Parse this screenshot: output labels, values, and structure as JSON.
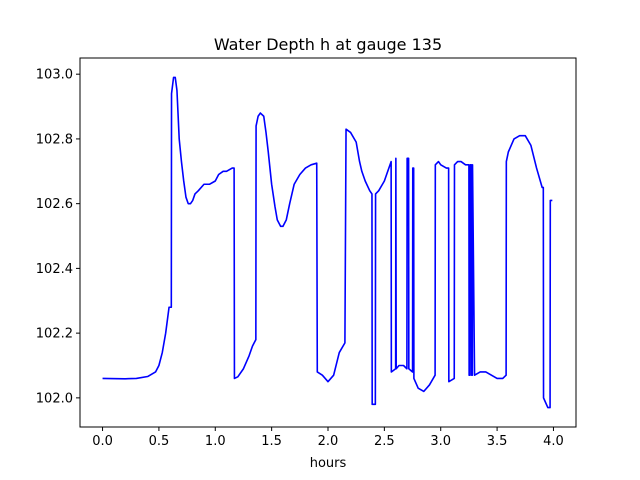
{
  "chart_data": {
    "type": "line",
    "title": "Water Depth h at gauge 135",
    "xlabel": "hours",
    "ylabel": "",
    "xlim": [
      -0.2,
      4.2
    ],
    "ylim": [
      101.91,
      103.05
    ],
    "xticks": [
      0.0,
      0.5,
      1.0,
      1.5,
      2.0,
      2.5,
      3.0,
      3.5,
      4.0
    ],
    "xtick_labels": [
      "0.0",
      "0.5",
      "1.0",
      "1.5",
      "2.0",
      "2.5",
      "3.0",
      "3.5",
      "4.0"
    ],
    "yticks": [
      102.0,
      102.2,
      102.4,
      102.6,
      102.8,
      103.0
    ],
    "ytick_labels": [
      "102.0",
      "102.2",
      "102.4",
      "102.6",
      "102.8",
      "103.0"
    ],
    "grid": false,
    "line_color": "#0000ff",
    "series": [
      {
        "x": [
          0.0,
          0.2,
          0.3,
          0.4,
          0.47,
          0.5,
          0.53,
          0.56,
          0.59,
          0.61,
          0.612,
          0.63,
          0.645,
          0.66,
          0.68,
          0.7,
          0.72,
          0.74,
          0.76,
          0.78,
          0.8,
          0.82,
          0.85,
          0.9,
          0.95,
          1.0,
          1.03,
          1.07,
          1.1,
          1.15,
          1.167,
          1.17,
          1.2,
          1.25,
          1.3,
          1.33,
          1.36,
          1.362,
          1.38,
          1.4,
          1.43,
          1.45,
          1.47,
          1.5,
          1.53,
          1.55,
          1.58,
          1.6,
          1.63,
          1.66,
          1.7,
          1.75,
          1.8,
          1.85,
          1.9,
          1.905,
          1.95,
          2.0,
          2.05,
          2.1,
          2.15,
          2.16,
          2.2,
          2.25,
          2.28,
          2.3,
          2.33,
          2.37,
          2.39,
          2.392,
          2.42,
          2.422,
          2.45,
          2.5,
          2.53,
          2.56,
          2.562,
          2.6,
          2.602,
          2.605,
          2.63,
          2.67,
          2.7,
          2.702,
          2.715,
          2.717,
          2.75,
          2.752,
          2.76,
          2.762,
          2.8,
          2.85,
          2.9,
          2.95,
          2.952,
          2.98,
          3.0,
          3.05,
          3.07,
          3.072,
          3.12,
          3.122,
          3.15,
          3.18,
          3.22,
          3.25,
          3.252,
          3.26,
          3.262,
          3.272,
          3.275,
          3.28,
          3.282,
          3.3,
          3.35,
          3.4,
          3.45,
          3.5,
          3.55,
          3.58,
          3.582,
          3.6,
          3.65,
          3.7,
          3.75,
          3.8,
          3.85,
          3.9,
          3.91,
          3.912,
          3.95,
          3.97,
          3.972,
          3.99
        ],
        "y": [
          102.06,
          102.059,
          102.06,
          102.066,
          102.08,
          102.1,
          102.14,
          102.2,
          102.28,
          102.28,
          102.94,
          102.99,
          102.99,
          102.95,
          102.8,
          102.73,
          102.67,
          102.62,
          102.6,
          102.6,
          102.61,
          102.63,
          102.64,
          102.66,
          102.66,
          102.67,
          102.69,
          102.7,
          102.7,
          102.71,
          102.71,
          102.06,
          102.065,
          102.09,
          102.13,
          102.16,
          102.18,
          102.84,
          102.87,
          102.88,
          102.87,
          102.82,
          102.76,
          102.66,
          102.59,
          102.55,
          102.53,
          102.53,
          102.55,
          102.6,
          102.66,
          102.69,
          102.71,
          102.72,
          102.725,
          102.08,
          102.07,
          102.05,
          102.07,
          102.14,
          102.17,
          102.83,
          102.82,
          102.79,
          102.73,
          102.7,
          102.67,
          102.64,
          102.63,
          101.98,
          101.98,
          102.63,
          102.64,
          102.67,
          102.7,
          102.73,
          102.08,
          102.09,
          102.74,
          102.09,
          102.1,
          102.1,
          102.09,
          102.74,
          102.74,
          102.09,
          102.08,
          102.71,
          102.71,
          102.06,
          102.03,
          102.02,
          102.04,
          102.07,
          102.72,
          102.73,
          102.72,
          102.71,
          102.71,
          102.05,
          102.06,
          102.72,
          102.73,
          102.73,
          102.72,
          102.72,
          102.07,
          102.07,
          102.72,
          102.72,
          102.07,
          102.07,
          102.72,
          102.07,
          102.08,
          102.08,
          102.07,
          102.06,
          102.06,
          102.07,
          102.73,
          102.76,
          102.8,
          102.81,
          102.81,
          102.78,
          102.71,
          102.65,
          102.65,
          102.0,
          101.97,
          101.97,
          102.61,
          102.61
        ]
      }
    ]
  }
}
